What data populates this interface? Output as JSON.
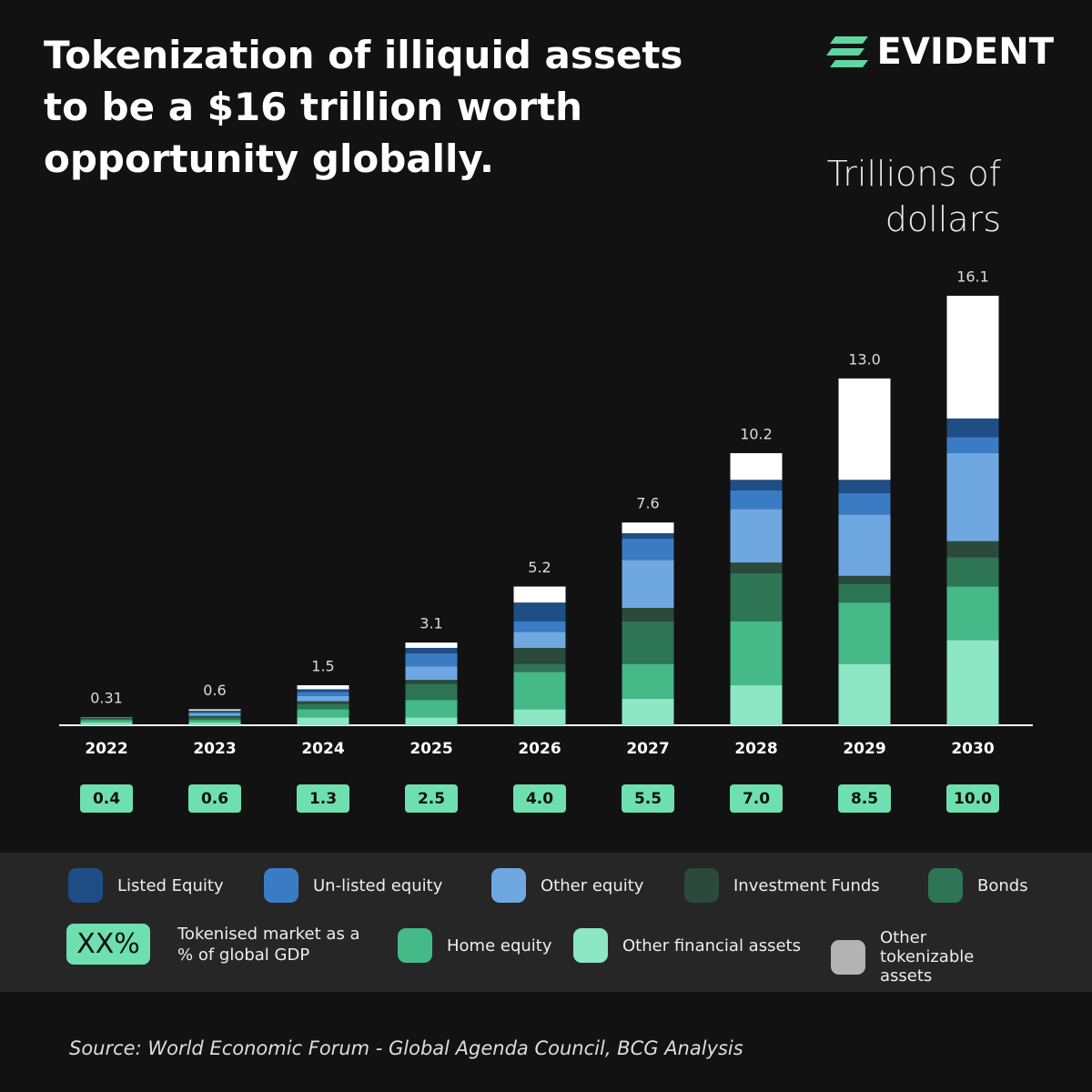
{
  "brand": "EVIDENT",
  "chart_data": {
    "type": "stacked_bar",
    "title": "Tokenization of illiquid assets to be a $16 trillion worth opportunity globally.",
    "axis_label": "Trillions of dollars",
    "categories": [
      "2022",
      "2023",
      "2024",
      "2025",
      "2026",
      "2027",
      "2028",
      "2029",
      "2030"
    ],
    "series": [
      {
        "name": "Other financial assets",
        "color": "#8de6c4",
        "values": [
          0.1,
          0.1,
          0.3,
          0.3,
          0.6,
          1.0,
          1.5,
          2.3,
          3.2
        ]
      },
      {
        "name": "Home equity",
        "color": "#45b987",
        "values": [
          0.1,
          0.1,
          0.3,
          0.65,
          1.4,
          1.3,
          2.4,
          2.3,
          2.0
        ]
      },
      {
        "name": "Bonds",
        "color": "#2e7555",
        "values": [
          0.05,
          0.1,
          0.2,
          0.6,
          0.3,
          1.6,
          1.8,
          0.7,
          1.1
        ]
      },
      {
        "name": "Investment Funds",
        "color": "#2b4a3b",
        "values": [
          0.02,
          0.05,
          0.1,
          0.15,
          0.6,
          0.5,
          0.4,
          0.3,
          0.6
        ]
      },
      {
        "name": "Other equity",
        "color": "#6fa8e0",
        "values": [
          0.02,
          0.1,
          0.2,
          0.5,
          0.6,
          1.8,
          2.0,
          2.3,
          3.3
        ]
      },
      {
        "name": "Un-listed equity",
        "color": "#3a7cc4",
        "values": [
          0.01,
          0.05,
          0.15,
          0.5,
          0.4,
          0.8,
          0.7,
          0.8,
          0.6
        ]
      },
      {
        "name": "Listed Equity",
        "color": "#1f4e87",
        "values": [
          0.01,
          0.05,
          0.1,
          0.2,
          0.7,
          0.2,
          0.4,
          0.5,
          0.7
        ]
      },
      {
        "name": "Other tokenizable assets",
        "color": "#ffffff",
        "legend_color": "#b3b3b3",
        "values": [
          0,
          0.05,
          0.15,
          0.2,
          0.6,
          0.4,
          1.0,
          3.8,
          4.6
        ]
      }
    ],
    "totals": [
      0.31,
      0.6,
      1.5,
      3.1,
      5.2,
      7.6,
      10.2,
      13.0,
      16.1
    ],
    "totals_value_labels": [
      "0.31",
      "0.6",
      "1.5",
      "3.1",
      "5.2",
      "7.6",
      "10.2",
      "13.0",
      "16.1"
    ],
    "gdp_share": [
      0.4,
      0.6,
      1.3,
      2.5,
      4.0,
      5.5,
      7.0,
      8.5,
      10.0
    ],
    "gdp_share_value_labels": [
      "0.4",
      "0.6",
      "1.3",
      "2.5",
      "4.0",
      "5.5",
      "7.0",
      "8.5",
      "10.0"
    ],
    "gdp_legend": {
      "symbol": "XX%",
      "label": "Tokenised market as a % of global GDP"
    },
    "source": "Source: World Economic Forum - Global Agenda Council, BCG Analysis"
  }
}
